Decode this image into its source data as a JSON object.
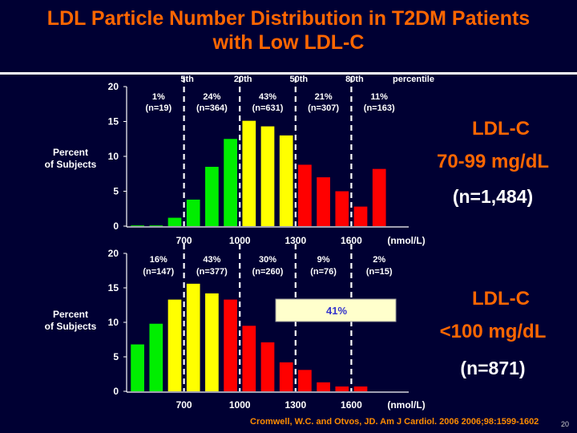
{
  "title_line1": "LDL Particle Number Distribution in T2DM Patients",
  "title_line2": "with Low LDL-C",
  "top_panel": {
    "heading1": "LDL-C",
    "heading2": "70-99 mg/dL",
    "n": "(n=1,484)"
  },
  "bottom_panel": {
    "heading1": "LDL-C",
    "heading2": "<100 mg/dL",
    "n": "(n=871)"
  },
  "citation": "Cromwell, W.C. and Otvos, JD. Am J Cardiol. 2006 2006;98:1599-1602",
  "page_number": "20",
  "colors": {
    "green": "#00ee00",
    "yellow": "#ffff00",
    "red": "#ff0000",
    "white": "#ffffff",
    "orange": "#ff6600"
  },
  "chart_data": [
    {
      "type": "bar",
      "name": "LDL-C 70-99 mg/dL",
      "ylabel": "Percent of Subjects",
      "yticks": [
        "0",
        "5",
        "10",
        "15",
        "20"
      ],
      "ylim": [
        0,
        20
      ],
      "xlim": [
        400,
        1900
      ],
      "xticks": [
        "700",
        "1000",
        "1300",
        "1600",
        "(nmol/L)"
      ],
      "x": [
        400,
        500,
        600,
        700,
        800,
        900,
        1000,
        1100,
        1200,
        1300,
        1400,
        1500,
        1600,
        1700,
        1800
      ],
      "values": [
        0.1,
        0.1,
        1.2,
        3.8,
        8.5,
        12.5,
        15.1,
        14.3,
        13,
        8.8,
        7,
        5,
        2.8,
        8.2,
        0
      ],
      "bar_colors": [
        "green",
        "green",
        "green",
        "green",
        "green",
        "green",
        "yellow",
        "yellow",
        "yellow",
        "red",
        "red",
        "red",
        "red",
        "red",
        "red"
      ],
      "percentile_lines": [
        {
          "x": 700,
          "label": "5th"
        },
        {
          "x": 1000,
          "label": "20th"
        },
        {
          "x": 1300,
          "label": "50th"
        },
        {
          "x": 1600,
          "label": "80th"
        }
      ],
      "percentile_caption": "percentile",
      "segments": [
        {
          "pct": "1%",
          "n": "(n=19)"
        },
        {
          "pct": "24%",
          "n": "(n=364)"
        },
        {
          "pct": "43%",
          "n": "(n=631)"
        },
        {
          "pct": "21%",
          "n": "(n=307)"
        },
        {
          "pct": "11%",
          "n": "(n=163)"
        }
      ]
    },
    {
      "type": "bar",
      "name": "LDL-C <100 mg/dL",
      "ylabel": "Percent of Subjects",
      "yticks": [
        "0",
        "5",
        "10",
        "15",
        "20"
      ],
      "ylim": [
        0,
        20
      ],
      "xlim": [
        400,
        1900
      ],
      "xticks": [
        "700",
        "1000",
        "1300",
        "1600",
        "(nmol/L)"
      ],
      "x": [
        400,
        500,
        600,
        700,
        800,
        900,
        1000,
        1100,
        1200,
        1300,
        1400,
        1500,
        1600,
        1700,
        1800
      ],
      "values": [
        6.8,
        9.8,
        13.3,
        15.6,
        14.2,
        13.3,
        9.5,
        7.1,
        4.2,
        3.1,
        1.3,
        0.7,
        0.7,
        0,
        0
      ],
      "bar_colors": [
        "green",
        "green",
        "yellow",
        "yellow",
        "yellow",
        "red",
        "red",
        "red",
        "red",
        "red",
        "red",
        "red",
        "red",
        "red",
        "red"
      ],
      "percentile_lines": [
        {
          "x": 700,
          "label": ""
        },
        {
          "x": 1000,
          "label": ""
        },
        {
          "x": 1300,
          "label": ""
        },
        {
          "x": 1600,
          "label": ""
        }
      ],
      "segments": [
        {
          "pct": "16%",
          "n": "(n=147)"
        },
        {
          "pct": "43%",
          "n": "(n=377)"
        },
        {
          "pct": "30%",
          "n": "(n=260)"
        },
        {
          "pct": "9%",
          "n": "(n=76)"
        },
        {
          "pct": "2%",
          "n": "(n=15)"
        }
      ],
      "annotation": "41%"
    }
  ]
}
